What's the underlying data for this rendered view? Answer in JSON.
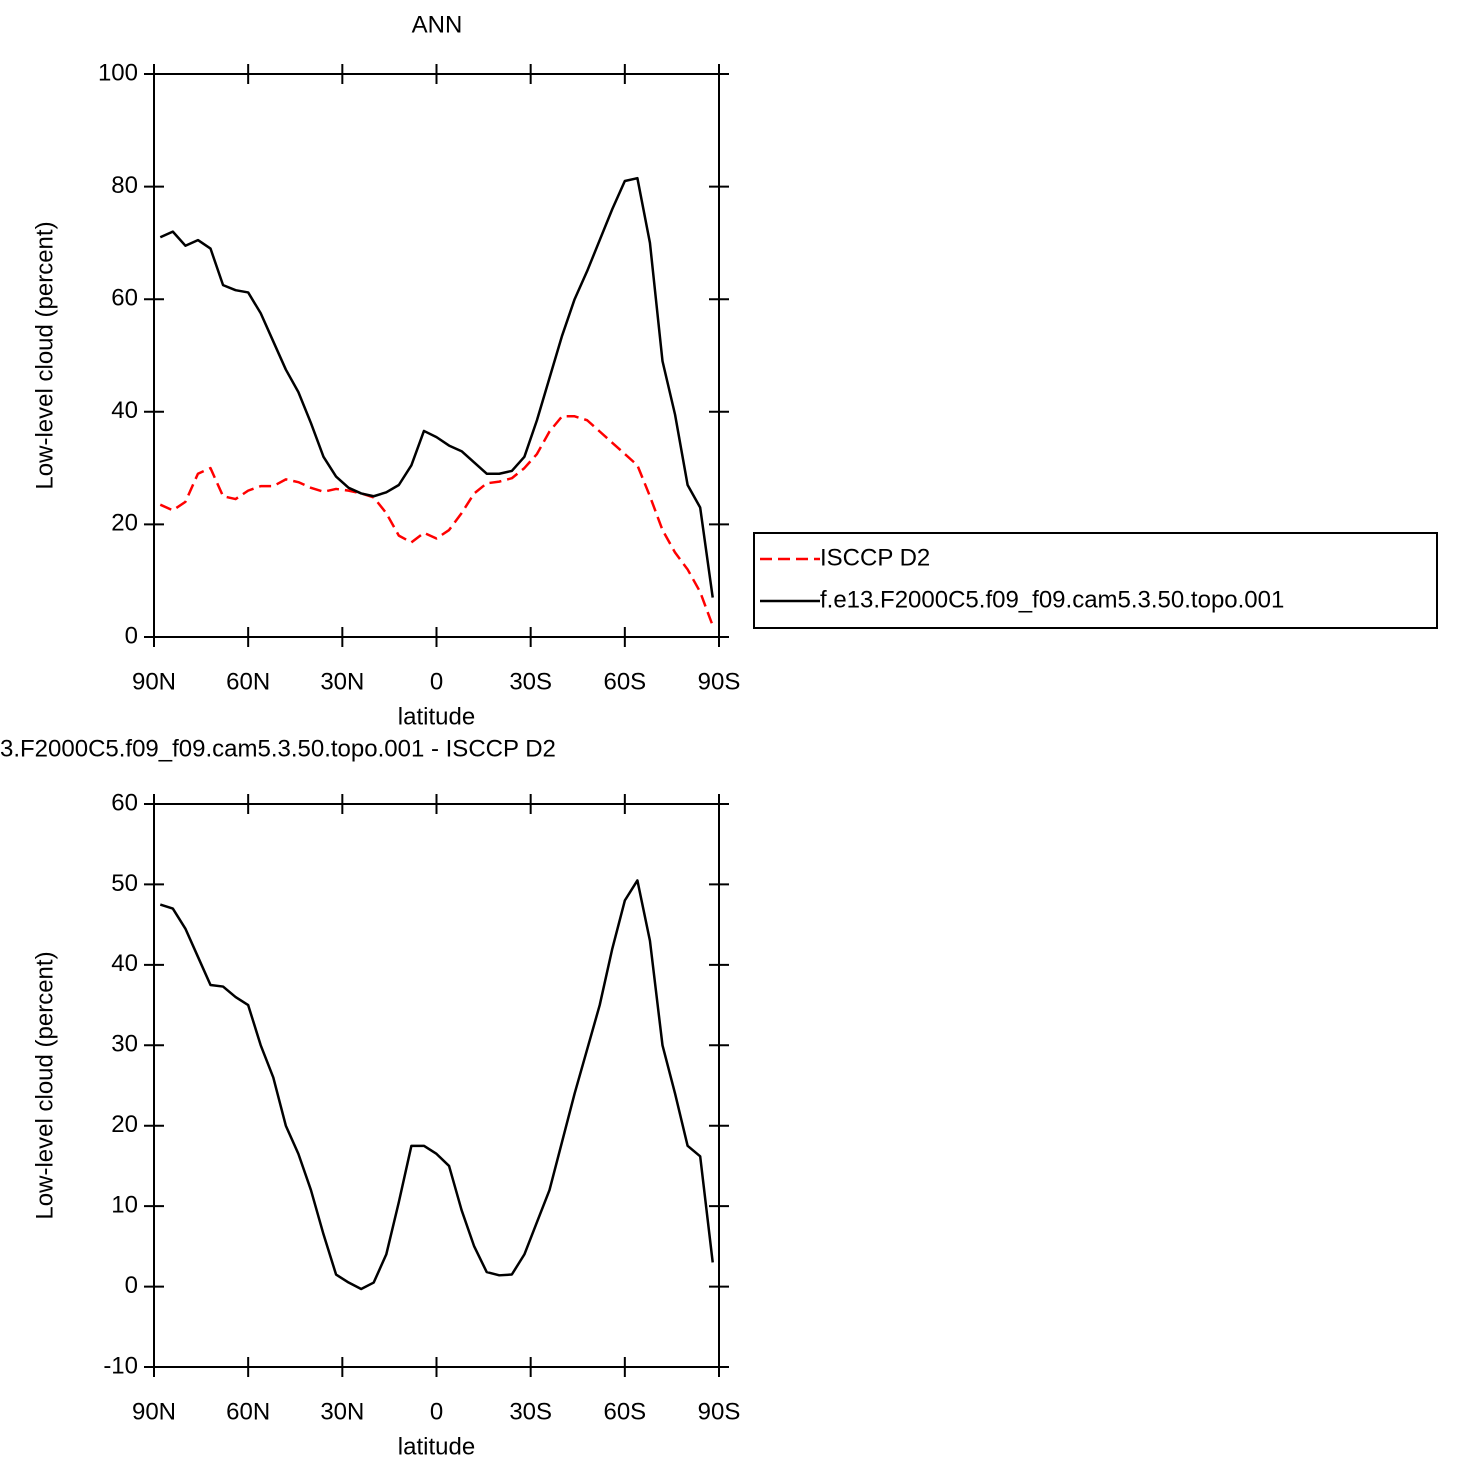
{
  "chart_data": [
    {
      "type": "line",
      "title": "ANN",
      "xlabel": "latitude",
      "ylabel": "Low-level cloud (percent)",
      "x": [
        88,
        84,
        80,
        76,
        72,
        68,
        64,
        60,
        56,
        52,
        48,
        44,
        40,
        36,
        32,
        28,
        24,
        20,
        16,
        12,
        8,
        4,
        0,
        -4,
        -8,
        -12,
        -16,
        -20,
        -24,
        -28,
        -32,
        -36,
        -40,
        -44,
        -48,
        -52,
        -56,
        -60,
        -64,
        -68,
        -72,
        -76,
        -80,
        -84,
        -88
      ],
      "series": [
        {
          "name": "ISCCP D2",
          "color": "#ff0000",
          "linestyle": "dashed",
          "values": [
            23.5,
            22.5,
            24,
            29,
            30,
            25,
            24.5,
            26,
            26.8,
            26.8,
            28,
            27.5,
            26.5,
            25.8,
            26.3,
            26,
            25.5,
            24.8,
            22,
            18,
            16.8,
            18.5,
            17.5,
            19,
            22,
            25.5,
            27.3,
            27.6,
            28.2,
            30,
            32.5,
            36.5,
            39.2,
            39.2,
            38.5,
            36.5,
            34.5,
            32.5,
            30.5,
            25,
            19,
            15,
            12,
            8,
            2
          ]
        },
        {
          "name": "f.e13.F2000C5.f09_f09.cam5.3.50.topo.001",
          "color": "#000000",
          "linestyle": "solid",
          "values": [
            71,
            72,
            69.5,
            70.5,
            69,
            62.5,
            61.6,
            61.2,
            57.5,
            52.5,
            47.5,
            43.5,
            38,
            32,
            28.5,
            26.5,
            25.5,
            25,
            25.7,
            27,
            30.5,
            36.6,
            35.5,
            34,
            33,
            31,
            29,
            29,
            29.5,
            32,
            38.5,
            46,
            53.5,
            60,
            65,
            70.5,
            76,
            81,
            81.5,
            70,
            49,
            39.5,
            27,
            23,
            7
          ]
        }
      ],
      "xlim": [
        90,
        -90
      ],
      "xticks": [
        {
          "value": 90,
          "label": "90N"
        },
        {
          "value": 60,
          "label": "60N"
        },
        {
          "value": 30,
          "label": "30N"
        },
        0,
        {
          "value": -30,
          "label": "30S"
        },
        {
          "value": -60,
          "label": "60S"
        },
        {
          "value": -90,
          "label": "90S"
        }
      ],
      "ylim": [
        0,
        100
      ],
      "yticks": [
        0,
        20,
        40,
        60,
        80,
        100
      ],
      "legend": "right"
    },
    {
      "type": "line",
      "title": "3.F2000C5.f09_f09.cam5.3.50.topo.001 - ISCCP D2",
      "xlabel": "latitude",
      "ylabel": "Low-level cloud (percent)",
      "x": [
        88,
        84,
        80,
        76,
        72,
        68,
        64,
        60,
        56,
        52,
        48,
        44,
        40,
        36,
        32,
        28,
        24,
        20,
        16,
        12,
        8,
        4,
        0,
        -4,
        -8,
        -12,
        -16,
        -20,
        -24,
        -28,
        -32,
        -36,
        -40,
        -44,
        -48,
        -52,
        -56,
        -60,
        -64,
        -68,
        -72,
        -76,
        -80,
        -84,
        -88
      ],
      "series": [
        {
          "color": "#000000",
          "linestyle": "solid",
          "values": [
            47.5,
            47,
            44.5,
            41,
            37.5,
            37.3,
            36,
            35,
            30,
            26,
            20,
            16.5,
            12,
            6.5,
            1.5,
            0.5,
            -0.3,
            0.5,
            4,
            10.5,
            17.5,
            17.5,
            16.5,
            15,
            9.5,
            5,
            1.8,
            1.4,
            1.5,
            4,
            8,
            12,
            18,
            24,
            29.5,
            35,
            42,
            48,
            50.5,
            43,
            30,
            24,
            17.5,
            16.2,
            3
          ]
        }
      ],
      "xlim": [
        90,
        -90
      ],
      "xticks": [
        {
          "value": 90,
          "label": "90N"
        },
        {
          "value": 60,
          "label": "60N"
        },
        {
          "value": 30,
          "label": "30N"
        },
        0,
        {
          "value": -30,
          "label": "30S"
        },
        {
          "value": -60,
          "label": "60S"
        },
        {
          "value": -90,
          "label": "90S"
        }
      ],
      "ylim": [
        -10,
        60
      ],
      "yticks": [
        -10,
        0,
        10,
        20,
        30,
        40,
        50,
        60
      ]
    }
  ]
}
